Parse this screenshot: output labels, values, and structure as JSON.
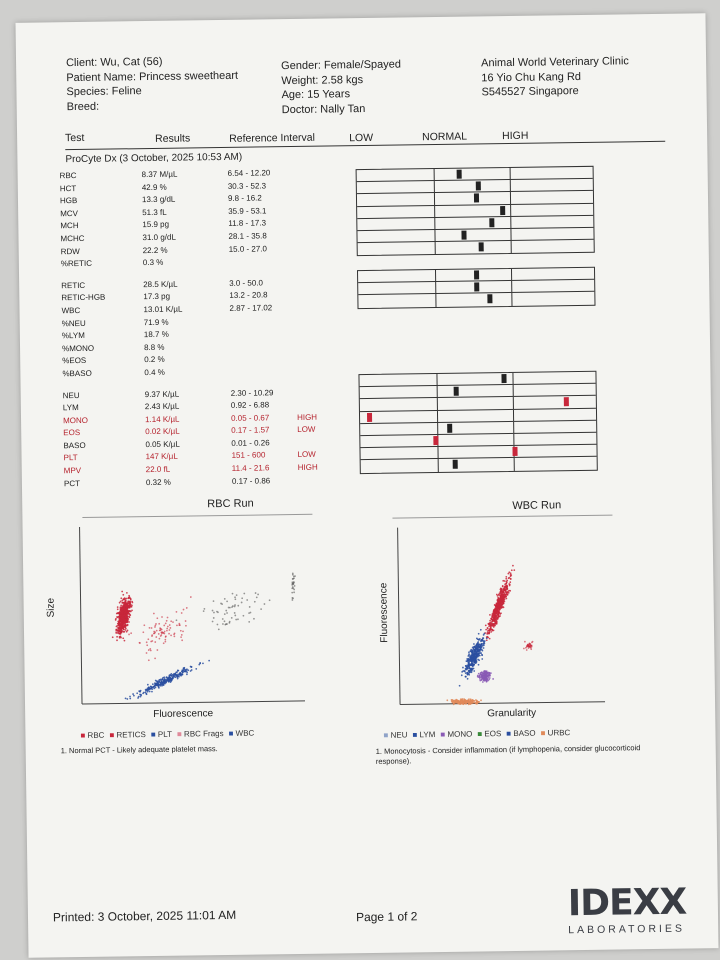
{
  "header": {
    "client": "Client: Wu, Cat (56)",
    "patient": "Patient Name: Princess sweetheart",
    "species": "Species: Feline",
    "breed": "Breed:",
    "gender": "Gender: Female/Spayed",
    "weight": "Weight: 2.58 kgs",
    "age": "Age: 15 Years",
    "doctor": "Doctor: Nally Tan",
    "clinic": "Animal World Veterinary Clinic",
    "address": "16 Yio Chu Kang Rd",
    "postal": "S545527 Singapore"
  },
  "columns": {
    "test": "Test",
    "results": "Results",
    "reference": "Reference Interval",
    "low": "LOW",
    "normal": "NORMAL",
    "high": "HIGH"
  },
  "run_title": "ProCyte Dx (3 October, 2025 10:53 AM)",
  "rows": [
    {
      "name": "RBC",
      "value": "8.37 M/µL",
      "ref": "6.54 - 12.20",
      "flag": ""
    },
    {
      "name": "HCT",
      "value": "42.9 %",
      "ref": "30.3 - 52.3",
      "flag": ""
    },
    {
      "name": "HGB",
      "value": "13.3 g/dL",
      "ref": "9.8 - 16.2",
      "flag": ""
    },
    {
      "name": "MCV",
      "value": "51.3 fL",
      "ref": "35.9 - 53.1",
      "flag": ""
    },
    {
      "name": "MCH",
      "value": "15.9 pg",
      "ref": "11.8 - 17.3",
      "flag": ""
    },
    {
      "name": "MCHC",
      "value": "31.0 g/dL",
      "ref": "28.1 - 35.8",
      "flag": ""
    },
    {
      "name": "RDW",
      "value": "22.2 %",
      "ref": "15.0 - 27.0",
      "flag": ""
    },
    {
      "name": "%RETIC",
      "value": "0.3 %",
      "ref": "",
      "flag": ""
    },
    {
      "name": "RETIC",
      "value": "28.5 K/µL",
      "ref": "3.0 - 50.0",
      "flag": ""
    },
    {
      "name": "RETIC-HGB",
      "value": "17.3 pg",
      "ref": "13.2 - 20.8",
      "flag": ""
    },
    {
      "name": "WBC",
      "value": "13.01 K/µL",
      "ref": "2.87 - 17.02",
      "flag": ""
    },
    {
      "name": "%NEU",
      "value": "71.9 %",
      "ref": "",
      "flag": ""
    },
    {
      "name": "%LYM",
      "value": "18.7 %",
      "ref": "",
      "flag": ""
    },
    {
      "name": "%MONO",
      "value": "8.8 %",
      "ref": "",
      "flag": ""
    },
    {
      "name": "%EOS",
      "value": "0.2 %",
      "ref": "",
      "flag": ""
    },
    {
      "name": "%BASO",
      "value": "0.4 %",
      "ref": "",
      "flag": ""
    },
    {
      "name": "NEU",
      "value": "9.37 K/µL",
      "ref": "2.30 - 10.29",
      "flag": ""
    },
    {
      "name": "LYM",
      "value": "2.43 K/µL",
      "ref": "0.92 - 6.88",
      "flag": ""
    },
    {
      "name": "MONO",
      "value": "1.14 K/µL",
      "ref": "0.05 - 0.67",
      "flag": "HIGH"
    },
    {
      "name": "EOS",
      "value": "0.02 K/µL",
      "ref": "0.17 - 1.57",
      "flag": "LOW"
    },
    {
      "name": "BASO",
      "value": "0.05 K/µL",
      "ref": "0.01 - 0.26",
      "flag": ""
    },
    {
      "name": "PLT",
      "value": "147 K/µL",
      "ref": "151 - 600",
      "flag": "LOW"
    },
    {
      "name": "MPV",
      "value": "22.0 fL",
      "ref": "11.4 - 21.6",
      "flag": "HIGH"
    },
    {
      "name": "PCT",
      "value": "0.32 %",
      "ref": "0.17 - 0.86",
      "flag": ""
    }
  ],
  "rbc_run": {
    "title": "RBC Run",
    "ylabel": "Size",
    "xlabel": "Fluorescence",
    "legend": [
      "RBC",
      "RETICS",
      "PLT",
      "RBC Frags",
      "WBC"
    ],
    "legend_colors": [
      "#c8273b",
      "#c8273b",
      "#2a4fa0",
      "#e08a9a",
      "#2a4fa0"
    ],
    "note": "1. Normal PCT - Likely adequate platelet mass."
  },
  "wbc_run": {
    "title": "WBC Run",
    "ylabel": "Fluorescence",
    "xlabel": "Granularity",
    "legend": [
      "NEU",
      "LYM",
      "MONO",
      "EOS",
      "BASO",
      "URBC"
    ],
    "legend_colors": [
      "#8fa3c8",
      "#2a4fa0",
      "#8a5bb5",
      "#3a8a3a",
      "#2a4fa0",
      "#e08a5a"
    ],
    "note_line1": "1. Monocytosis - Consider inflammation (if lymphopenia, consider glucocorticoid",
    "note_line2": "response)."
  },
  "footer": {
    "printed": "Printed: 3 October, 2025 11:01 AM",
    "page": "Page 1 of 2",
    "logo": "IDEXX",
    "logo_sub": "LABORATORIES"
  },
  "colors": {
    "flag_red": "#b5232e",
    "marker_red": "#c8273b",
    "marker_dark": "#222222"
  }
}
